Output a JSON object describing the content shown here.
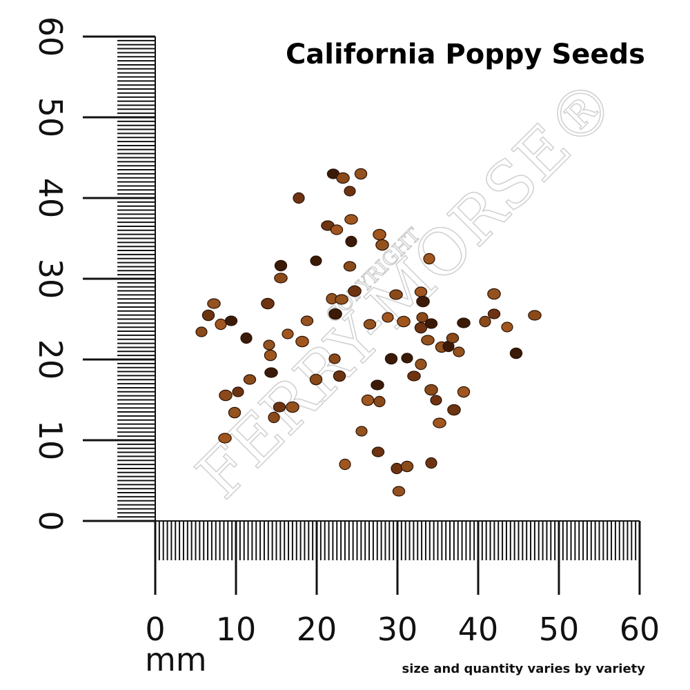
{
  "title": "California Poppy Seeds",
  "y_ruler_labels": [
    "0",
    "10",
    "20",
    "30",
    "40",
    "50",
    "60"
  ],
  "x_ruler_labels": [
    "0",
    "10",
    "20",
    "30",
    "40",
    "50",
    "60"
  ],
  "unit": "mm",
  "note": "size and quantity varies by variety",
  "watermark": {
    "brand": "FERRY-MORSE®",
    "copyright": "COPYRIGHT"
  }
}
